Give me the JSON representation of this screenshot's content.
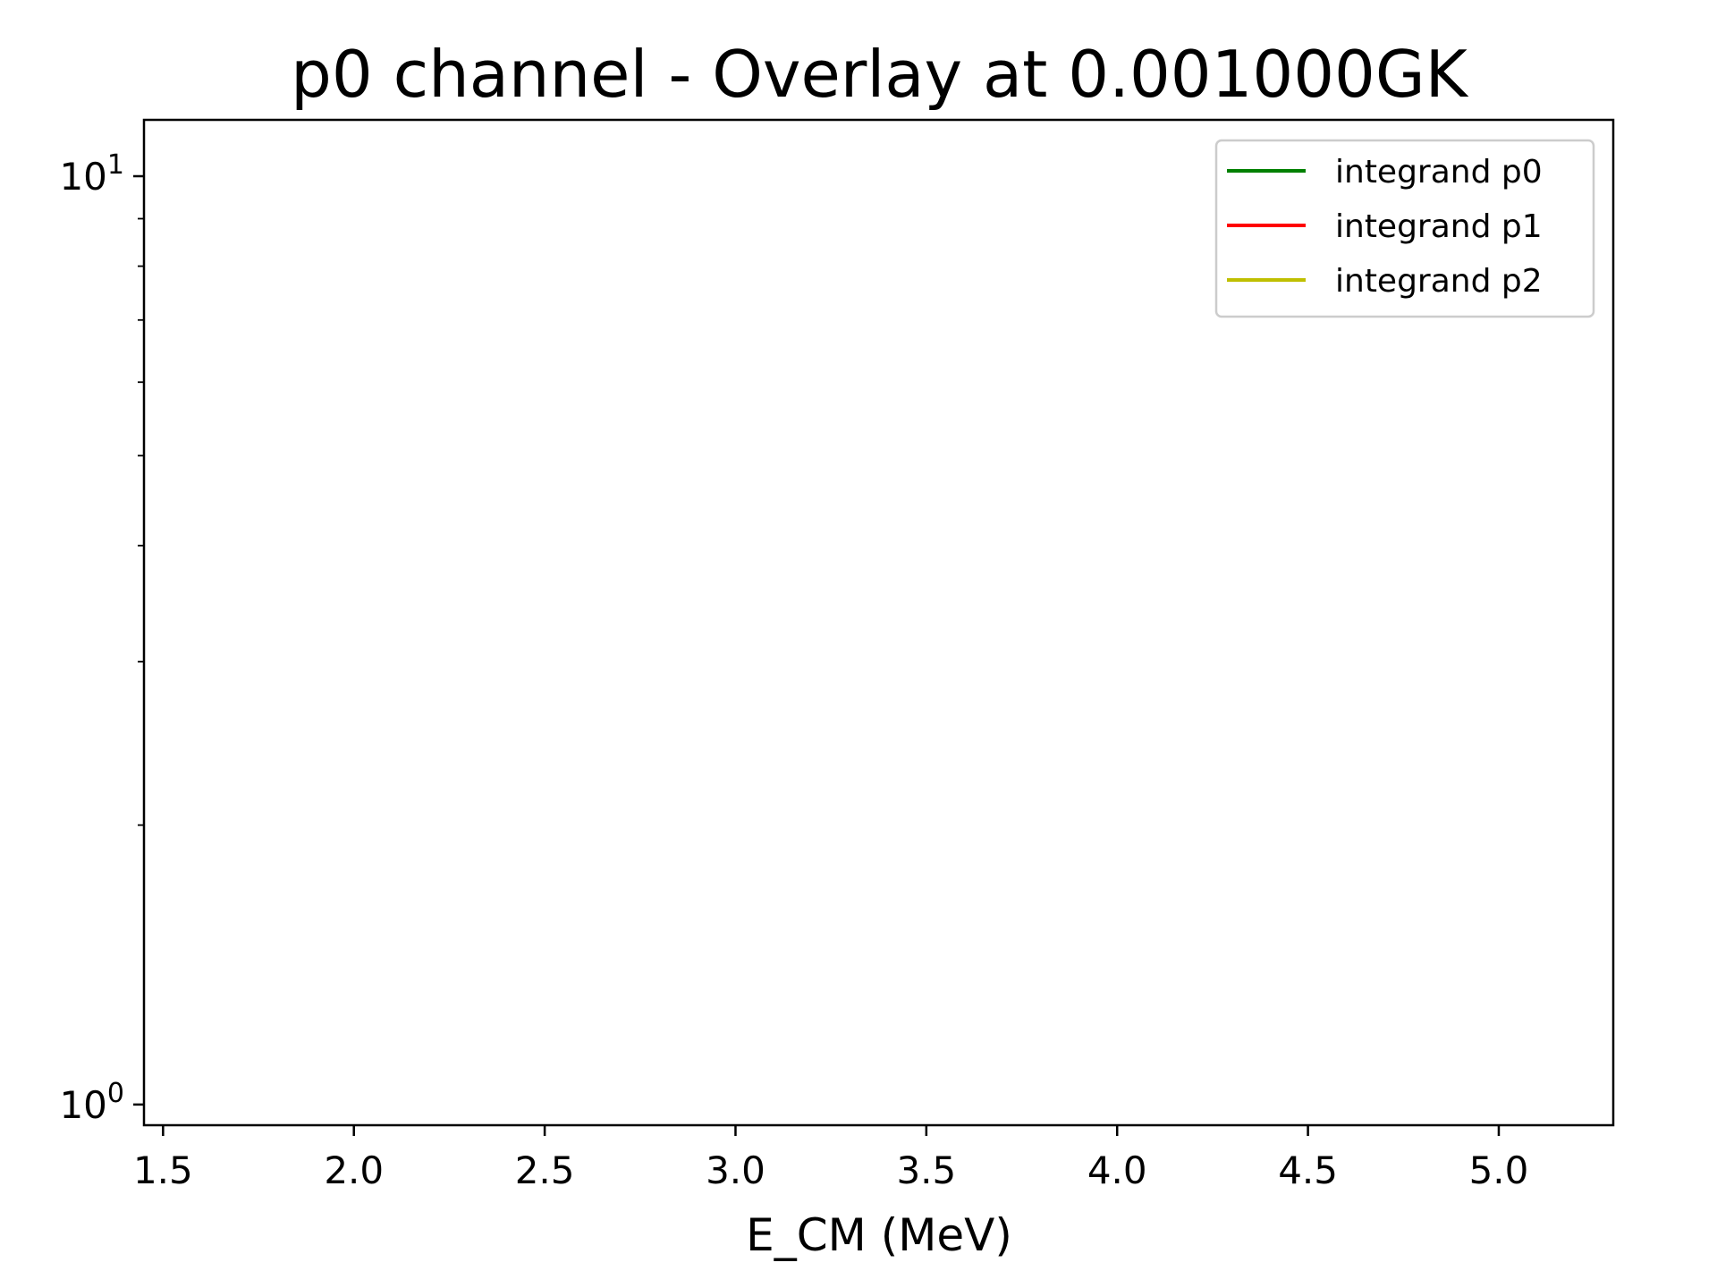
{
  "chart_data": {
    "type": "line",
    "title": "p0 channel - Overlay at 0.001000GK",
    "xlabel": "E_CM (MeV)",
    "ylabel": "",
    "xlim": [
      1.45,
      5.3
    ],
    "ylim": [
      0.95,
      11.5
    ],
    "yscale": "log",
    "x_ticks": [
      1.5,
      2.0,
      2.5,
      3.0,
      3.5,
      4.0,
      4.5,
      5.0
    ],
    "x_tick_labels": [
      "1.5",
      "2.0",
      "2.5",
      "3.0",
      "3.5",
      "4.0",
      "4.5",
      "5.0"
    ],
    "y_major_ticks": [
      {
        "value": 1,
        "base": "10",
        "exp": "0"
      },
      {
        "value": 10,
        "base": "10",
        "exp": "1"
      }
    ],
    "y_minor_ticks": [
      2,
      3,
      4,
      5,
      6,
      7,
      8,
      9
    ],
    "grid": false,
    "legend_position": "top-right",
    "series": [
      {
        "name": "integrand p0",
        "color": "#008000",
        "x": [],
        "y": []
      },
      {
        "name": "integrand p1",
        "color": "#ff0000",
        "x": [],
        "y": []
      },
      {
        "name": "integrand p2",
        "color": "#bfbf00",
        "x": [],
        "y": []
      }
    ]
  }
}
